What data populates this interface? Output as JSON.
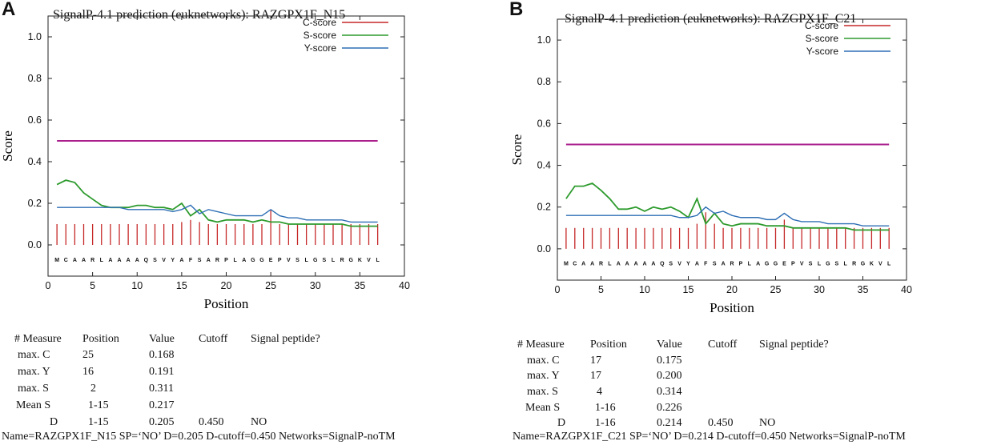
{
  "panels": [
    {
      "letter": "A",
      "chart_data": {
        "type": "line",
        "title": "SignalP-4.1 prediction (euknetworks): RAZGPX1F_N15",
        "xlabel": "Position",
        "ylabel": "Score",
        "xlim": [
          0,
          40
        ],
        "ylim": [
          -0.15,
          1.1
        ],
        "xticks": [
          0,
          5,
          10,
          15,
          20,
          25,
          30,
          35,
          40
        ],
        "yticks": [
          "0.0",
          "0.2",
          "0.4",
          "0.6",
          "0.8",
          "1.0"
        ],
        "legend": [
          {
            "name": "C-score",
            "color": "#c62828"
          },
          {
            "name": "S-score",
            "color": "#2e9b2e"
          },
          {
            "name": "Y-score",
            "color": "#2e6fb5"
          }
        ],
        "threshold": {
          "value": 0.5,
          "x": [
            1,
            37
          ],
          "color": "#aa1f8c"
        },
        "sequence": [
          "M",
          "C",
          "A",
          "A",
          "R",
          "L",
          "A",
          "A",
          "A",
          "A",
          "Q",
          "S",
          "V",
          "Y",
          "A",
          "F",
          "S",
          "A",
          "R",
          "P",
          "L",
          "A",
          "G",
          "G",
          "E",
          "P",
          "V",
          "S",
          "L",
          "G",
          "S",
          "L",
          "R",
          "G",
          "K",
          "V",
          "L"
        ],
        "c_score": [
          0.1,
          0.1,
          0.1,
          0.1,
          0.1,
          0.1,
          0.1,
          0.1,
          0.1,
          0.1,
          0.1,
          0.1,
          0.1,
          0.1,
          0.11,
          0.12,
          0.11,
          0.1,
          0.1,
          0.1,
          0.1,
          0.1,
          0.1,
          0.1,
          0.168,
          0.1,
          0.1,
          0.1,
          0.1,
          0.1,
          0.1,
          0.1,
          0.1,
          0.1,
          0.1,
          0.1,
          0.1
        ],
        "s_score": [
          0.29,
          0.311,
          0.3,
          0.25,
          0.22,
          0.19,
          0.18,
          0.18,
          0.18,
          0.19,
          0.19,
          0.18,
          0.18,
          0.17,
          0.2,
          0.14,
          0.17,
          0.12,
          0.11,
          0.12,
          0.12,
          0.12,
          0.11,
          0.12,
          0.11,
          0.11,
          0.1,
          0.1,
          0.1,
          0.1,
          0.1,
          0.1,
          0.1,
          0.09,
          0.09,
          0.09,
          0.09
        ],
        "y_score": [
          0.18,
          0.18,
          0.18,
          0.18,
          0.18,
          0.18,
          0.18,
          0.18,
          0.17,
          0.17,
          0.17,
          0.17,
          0.17,
          0.16,
          0.17,
          0.191,
          0.15,
          0.17,
          0.16,
          0.15,
          0.14,
          0.14,
          0.14,
          0.14,
          0.17,
          0.14,
          0.13,
          0.13,
          0.12,
          0.12,
          0.12,
          0.12,
          0.12,
          0.11,
          0.11,
          0.11,
          0.11
        ]
      },
      "table": {
        "headers": [
          "# Measure",
          "Position",
          "Value",
          "Cutoff",
          "Signal peptide?"
        ],
        "rows": [
          [
            "max. C",
            "25",
            "0.168",
            "",
            ""
          ],
          [
            "max. Y",
            "16",
            "0.191",
            "",
            ""
          ],
          [
            "max. S",
            "2",
            "0.311",
            "",
            ""
          ],
          [
            "Mean S",
            "1-15",
            "0.217",
            "",
            ""
          ],
          [
            "D",
            "1-15",
            "0.205",
            "0.450",
            "NO"
          ]
        ]
      },
      "summary": "Name=RAZGPX1F_N15    SP=‘NO’   D=0.205   D-cutoff=0.450   Networks=SignalP-noTM"
    },
    {
      "letter": "B",
      "chart_data": {
        "type": "line",
        "title": "SignalP-4.1 prediction (euknetworks): RAZGPX1F_C21",
        "xlabel": "Position",
        "ylabel": "Score",
        "xlim": [
          0,
          40
        ],
        "ylim": [
          -0.15,
          1.1
        ],
        "xticks": [
          0,
          5,
          10,
          15,
          20,
          25,
          30,
          35,
          40
        ],
        "yticks": [
          "0.0",
          "0.2",
          "0.4",
          "0.6",
          "0.8",
          "1.0"
        ],
        "legend": [
          {
            "name": "C-score",
            "color": "#c62828"
          },
          {
            "name": "S-score",
            "color": "#2e9b2e"
          },
          {
            "name": "Y-score",
            "color": "#2e6fb5"
          }
        ],
        "threshold": {
          "value": 0.5,
          "x": [
            1,
            38
          ],
          "color": "#aa1f8c"
        },
        "sequence": [
          "M",
          "C",
          "A",
          "A",
          "R",
          "L",
          "A",
          "A",
          "A",
          "A",
          "A",
          "Q",
          "S",
          "V",
          "Y",
          "A",
          "F",
          "S",
          "A",
          "R",
          "P",
          "L",
          "A",
          "G",
          "G",
          "E",
          "P",
          "V",
          "S",
          "L",
          "G",
          "S",
          "L",
          "R",
          "G",
          "K",
          "V",
          "L"
        ],
        "c_score": [
          0.1,
          0.1,
          0.1,
          0.1,
          0.1,
          0.1,
          0.1,
          0.1,
          0.1,
          0.1,
          0.1,
          0.1,
          0.1,
          0.1,
          0.1,
          0.12,
          0.175,
          0.12,
          0.1,
          0.1,
          0.1,
          0.1,
          0.1,
          0.1,
          0.1,
          0.14,
          0.1,
          0.1,
          0.1,
          0.1,
          0.1,
          0.1,
          0.1,
          0.1,
          0.1,
          0.1,
          0.1,
          0.1
        ],
        "s_score": [
          0.24,
          0.3,
          0.3,
          0.314,
          0.28,
          0.24,
          0.19,
          0.19,
          0.2,
          0.18,
          0.2,
          0.19,
          0.2,
          0.18,
          0.15,
          0.24,
          0.12,
          0.17,
          0.12,
          0.11,
          0.12,
          0.12,
          0.12,
          0.11,
          0.11,
          0.11,
          0.1,
          0.1,
          0.1,
          0.1,
          0.1,
          0.1,
          0.1,
          0.09,
          0.09,
          0.09,
          0.09,
          0.09
        ],
        "y_score": [
          0.16,
          0.16,
          0.16,
          0.16,
          0.16,
          0.16,
          0.16,
          0.16,
          0.16,
          0.16,
          0.16,
          0.16,
          0.16,
          0.15,
          0.15,
          0.16,
          0.2,
          0.17,
          0.18,
          0.16,
          0.15,
          0.15,
          0.15,
          0.14,
          0.14,
          0.17,
          0.14,
          0.13,
          0.13,
          0.13,
          0.12,
          0.12,
          0.12,
          0.12,
          0.11,
          0.11,
          0.11,
          0.11
        ]
      },
      "table": {
        "headers": [
          "# Measure",
          "Position",
          "Value",
          "Cutoff",
          "Signal peptide?"
        ],
        "rows": [
          [
            "max. C",
            "17",
            "0.175",
            "",
            ""
          ],
          [
            "max. Y",
            "17",
            "0.200",
            "",
            ""
          ],
          [
            "max. S",
            "4",
            "0.314",
            "",
            ""
          ],
          [
            "Mean S",
            "1-16",
            "0.226",
            "",
            ""
          ],
          [
            "D",
            "1-16",
            "0.214",
            "0.450",
            "NO"
          ]
        ]
      },
      "summary": "Name=RAZGPX1F_C21    SP=‘NO’   D=0.214   D-cutoff=0.450   Networks=SignalP-noTM"
    }
  ]
}
